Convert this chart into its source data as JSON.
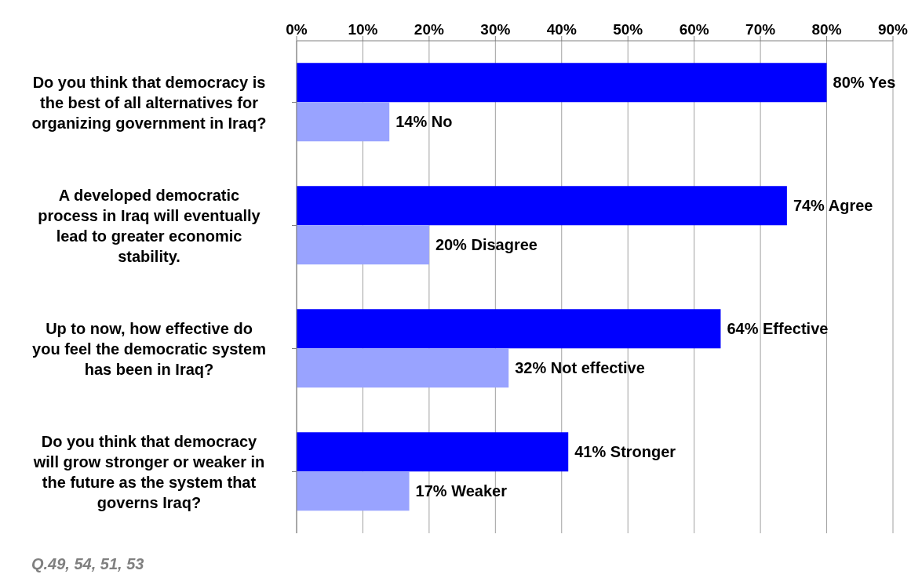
{
  "chart_data": {
    "type": "bar",
    "orientation": "horizontal",
    "categories": [
      "Do you think that democracy is the best of all alternatives for organizing government in Iraq?",
      "A developed democratic process in Iraq will eventually lead to greater economic stability.",
      "Up to now, how effective do you feel the democratic system has been in Iraq?",
      "Do you think that democracy will grow stronger or weaker in the future as the system that governs Iraq?"
    ],
    "series": [
      {
        "color": "#0000ff",
        "values": [
          80,
          74,
          64,
          41
        ],
        "value_labels": [
          "80% Yes",
          "74% Agree",
          "64% Effective",
          "41% Stronger"
        ]
      },
      {
        "color": "#99a3ff",
        "values": [
          14,
          20,
          32,
          17
        ],
        "value_labels": [
          "14% No",
          "20% Disagree",
          "32% Not effective",
          "17% Weaker"
        ]
      }
    ],
    "xlim": [
      0,
      90
    ],
    "xticks": [
      {
        "value": 0,
        "label": "0%"
      },
      {
        "value": 10,
        "label": "10%"
      },
      {
        "value": 20,
        "label": "20%"
      },
      {
        "value": 30,
        "label": "30%"
      },
      {
        "value": 40,
        "label": "40%"
      },
      {
        "value": 50,
        "label": "50%"
      },
      {
        "value": 60,
        "label": "60%"
      },
      {
        "value": 70,
        "label": "70%"
      },
      {
        "value": 80,
        "label": "80%"
      },
      {
        "value": 90,
        "label": "90%"
      }
    ],
    "grid": "x",
    "annotations": [
      "Q.49, 54, 51, 53"
    ]
  }
}
